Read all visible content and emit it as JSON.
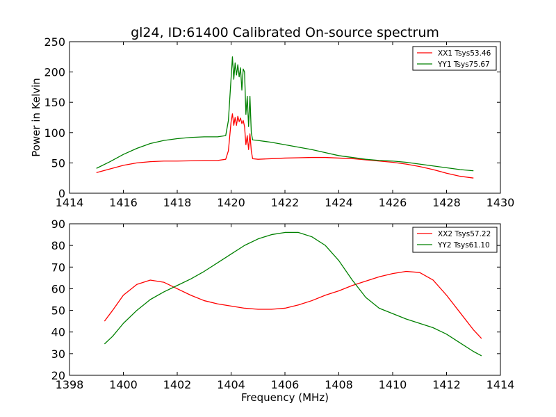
{
  "chart_data": [
    {
      "type": "line",
      "title": "gl24, ID:61400 Calibrated On-source spectrum",
      "xlabel": "",
      "ylabel": "Power in Kelvin",
      "xlim": [
        1414,
        1430
      ],
      "ylim": [
        0,
        250
      ],
      "xticks": [
        "1414",
        "1416",
        "1418",
        "1420",
        "1422",
        "1424",
        "1426",
        "1428",
        "1430"
      ],
      "yticks": [
        "0",
        "50",
        "100",
        "150",
        "200",
        "250"
      ],
      "grid": false,
      "legend_position": "top-right",
      "series": [
        {
          "name": "XX1 Tsys53.46",
          "color": "#ff0000",
          "x": [
            1415.0,
            1415.5,
            1416.0,
            1416.5,
            1417.0,
            1417.5,
            1418.0,
            1418.5,
            1419.0,
            1419.5,
            1419.8,
            1419.9,
            1420.0,
            1420.05,
            1420.1,
            1420.15,
            1420.2,
            1420.25,
            1420.3,
            1420.35,
            1420.4,
            1420.45,
            1420.5,
            1420.55,
            1420.6,
            1420.65,
            1420.7,
            1420.75,
            1420.8,
            1421.0,
            1421.5,
            1422.0,
            1422.5,
            1423.0,
            1423.5,
            1424.0,
            1424.5,
            1425.0,
            1425.5,
            1426.0,
            1426.5,
            1427.0,
            1427.5,
            1428.0,
            1428.5,
            1429.0
          ],
          "y": [
            34,
            40,
            46,
            50,
            52,
            53,
            53,
            53.5,
            54,
            54,
            56,
            70,
            118,
            131,
            112,
            125,
            112,
            127,
            118,
            124,
            115,
            120,
            110,
            80,
            95,
            72,
            98,
            70,
            57,
            56,
            57,
            58,
            58.5,
            59,
            59,
            58,
            57,
            55,
            53,
            51,
            48,
            44,
            39,
            33,
            28,
            25
          ]
        },
        {
          "name": "YY1 Tsys75.67",
          "color": "#008000",
          "x": [
            1415.0,
            1415.5,
            1416.0,
            1416.5,
            1417.0,
            1417.5,
            1418.0,
            1418.5,
            1419.0,
            1419.5,
            1419.8,
            1419.9,
            1420.0,
            1420.05,
            1420.1,
            1420.15,
            1420.2,
            1420.25,
            1420.3,
            1420.35,
            1420.4,
            1420.45,
            1420.5,
            1420.55,
            1420.6,
            1420.65,
            1420.7,
            1420.75,
            1420.8,
            1421.0,
            1421.5,
            1422.0,
            1422.5,
            1423.0,
            1423.5,
            1424.0,
            1424.5,
            1425.0,
            1425.5,
            1426.0,
            1426.5,
            1427.0,
            1427.5,
            1428.0,
            1428.5,
            1429.0
          ],
          "y": [
            41,
            52,
            64,
            74,
            82,
            87,
            90,
            92,
            93,
            93,
            95,
            120,
            190,
            225,
            188,
            215,
            195,
            212,
            192,
            207,
            170,
            205,
            200,
            130,
            160,
            110,
            160,
            100,
            88,
            87,
            84,
            80,
            76,
            72,
            67,
            62,
            59,
            56,
            54,
            53,
            51,
            48,
            45,
            42,
            39,
            37
          ]
        }
      ]
    },
    {
      "type": "line",
      "title": "",
      "xlabel": "Frequency (MHz)",
      "ylabel": "",
      "xlim": [
        1398,
        1414
      ],
      "ylim": [
        20,
        90
      ],
      "xticks": [
        "1398",
        "1400",
        "1402",
        "1404",
        "1406",
        "1408",
        "1410",
        "1412",
        "1414"
      ],
      "yticks": [
        "20",
        "30",
        "40",
        "50",
        "60",
        "70",
        "80",
        "90"
      ],
      "grid": false,
      "legend_position": "top-right",
      "series": [
        {
          "name": "XX2 Tsys57.22",
          "color": "#ff0000",
          "x": [
            1399.3,
            1399.6,
            1400.0,
            1400.5,
            1401.0,
            1401.5,
            1402.0,
            1402.5,
            1403.0,
            1403.5,
            1404.0,
            1404.5,
            1405.0,
            1405.5,
            1406.0,
            1406.5,
            1407.0,
            1407.5,
            1408.0,
            1408.5,
            1409.0,
            1409.5,
            1410.0,
            1410.5,
            1411.0,
            1411.5,
            1412.0,
            1412.5,
            1413.0,
            1413.3
          ],
          "y": [
            45,
            50,
            57,
            62,
            64,
            63,
            60,
            57,
            54.5,
            53,
            52,
            51,
            50.5,
            50.5,
            51,
            52.5,
            54.5,
            57,
            59,
            61.5,
            63.5,
            65.5,
            67,
            68,
            67.5,
            64,
            57,
            49,
            41,
            37
          ]
        },
        {
          "name": "YY2 Tsys61.10",
          "color": "#008000",
          "x": [
            1399.3,
            1399.6,
            1400.0,
            1400.5,
            1401.0,
            1401.5,
            1402.0,
            1402.5,
            1403.0,
            1403.5,
            1404.0,
            1404.5,
            1405.0,
            1405.5,
            1406.0,
            1406.5,
            1407.0,
            1407.5,
            1408.0,
            1408.5,
            1409.0,
            1409.5,
            1410.0,
            1410.5,
            1411.0,
            1411.5,
            1412.0,
            1412.5,
            1413.0,
            1413.3
          ],
          "y": [
            34.5,
            38,
            44,
            50,
            55,
            58.5,
            61.5,
            64.5,
            68,
            72,
            76,
            80,
            83,
            85,
            86,
            86,
            84,
            80,
            73,
            64,
            56,
            51,
            48.5,
            46,
            44,
            42,
            39,
            35,
            31,
            29
          ]
        }
      ]
    }
  ]
}
